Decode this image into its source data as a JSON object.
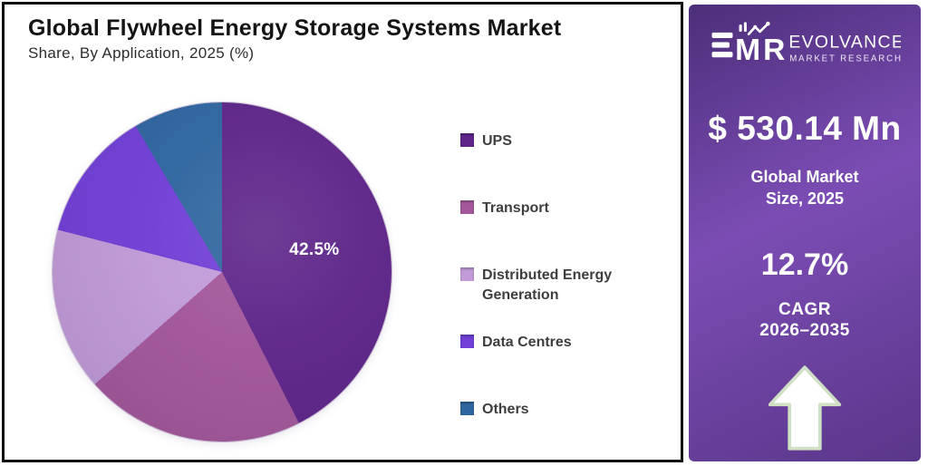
{
  "card": {
    "title": "Global Flywheel Energy Storage Systems Market",
    "subtitle": "Share, By Application, 2025 (%)"
  },
  "chart_data": {
    "type": "pie",
    "title": "Global Flywheel Energy Storage Systems Market Share, By Application, 2025 (%)",
    "value_unit": "%",
    "start_angle_deg": 0,
    "direction": "clockwise",
    "legend_position": "right",
    "labeled_slice": "UPS",
    "series": [
      {
        "name": "UPS",
        "value": 42.5,
        "label": "42.5%",
        "label_shown": true,
        "color": "#5e2689",
        "estimated": false
      },
      {
        "name": "Transport",
        "value": 21.0,
        "label_shown": false,
        "color": "#a2589a",
        "estimated": true
      },
      {
        "name": "Distributed Energy Generation",
        "value": 15.5,
        "label_shown": false,
        "color": "#c19cd8",
        "estimated": true
      },
      {
        "name": "Data Centres",
        "value": 12.5,
        "label_shown": false,
        "color": "#7140d6",
        "estimated": true
      },
      {
        "name": "Others",
        "value": 8.5,
        "label_shown": false,
        "color": "#30669f",
        "estimated": true
      }
    ]
  },
  "panel": {
    "logo": {
      "monogram_m": "M",
      "monogram_r": "R",
      "brand_name": "EVOLVANCE",
      "brand_tagline": "MARKET RESEARCH"
    },
    "market_size_value": "$ 530.14 Mn",
    "market_size_label_line1": "Global Market",
    "market_size_label_line2": "Size, 2025",
    "cagr_value": "12.7%",
    "cagr_label": "CAGR",
    "cagr_period": "2026–2035"
  },
  "colors": {
    "card_border": "#111111",
    "title_text": "#141414",
    "subtitle_text": "#2d2d2d",
    "legend_text": "#3e3e3e",
    "pie_label_text": "#ffffff",
    "panel_text": "#ffffff",
    "panel_gradient_1": "#4c2e7a",
    "panel_gradient_2": "#7b4db4",
    "panel_gradient_3": "#5a3689",
    "arrow_fill": "#ffffff",
    "arrow_outline": "#cfe0c4"
  }
}
